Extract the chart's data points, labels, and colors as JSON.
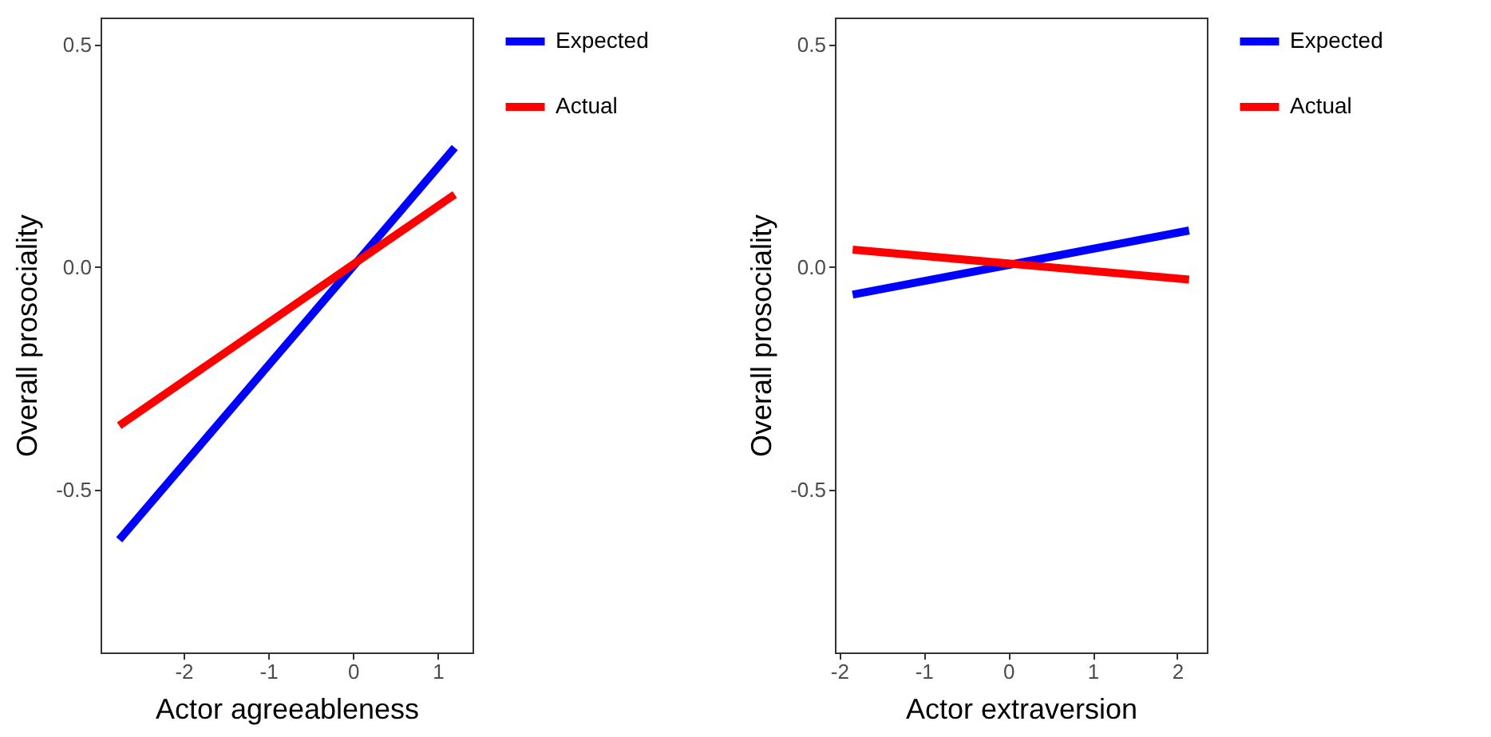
{
  "chart_data": [
    {
      "type": "line",
      "xlabel": "Actor agreeableness",
      "ylabel": "Overall prosociality",
      "x": [
        -2.76,
        1.2
      ],
      "series": [
        {
          "name": "Expected",
          "color": "#0000ff",
          "values": [
            -0.612,
            0.268
          ]
        },
        {
          "name": "Actual",
          "color": "#ff0000",
          "values": [
            -0.356,
            0.163
          ]
        }
      ],
      "xlim": [
        -2.98,
        1.41
      ],
      "xticks": [
        -2,
        -1,
        0,
        1
      ],
      "ylim": [
        -0.865,
        0.56
      ],
      "yticks": [
        {
          "value": -0.5,
          "label": "-0.5"
        },
        {
          "value": 0,
          "label": "0.0"
        },
        {
          "value": 0.5,
          "label": "0.5"
        }
      ],
      "grid": false,
      "legend": "right"
    },
    {
      "type": "line",
      "xlabel": "Actor extraversion",
      "ylabel": "Overall prosociality",
      "x": [
        -1.84,
        2.14
      ],
      "series": [
        {
          "name": "Expected",
          "color": "#0000ff",
          "values": [
            -0.062,
            0.082
          ]
        },
        {
          "name": "Actual",
          "color": "#ff0000",
          "values": [
            0.039,
            -0.028
          ]
        }
      ],
      "xlim": [
        -2.05,
        2.35
      ],
      "xticks": [
        -2,
        -1,
        0,
        1,
        2
      ],
      "ylim": [
        -0.865,
        0.56
      ],
      "yticks": [
        {
          "value": -0.5,
          "label": "-0.5"
        },
        {
          "value": 0,
          "label": "0.0"
        },
        {
          "value": 0.5,
          "label": "0.5"
        }
      ],
      "grid": false,
      "legend": "right"
    }
  ]
}
